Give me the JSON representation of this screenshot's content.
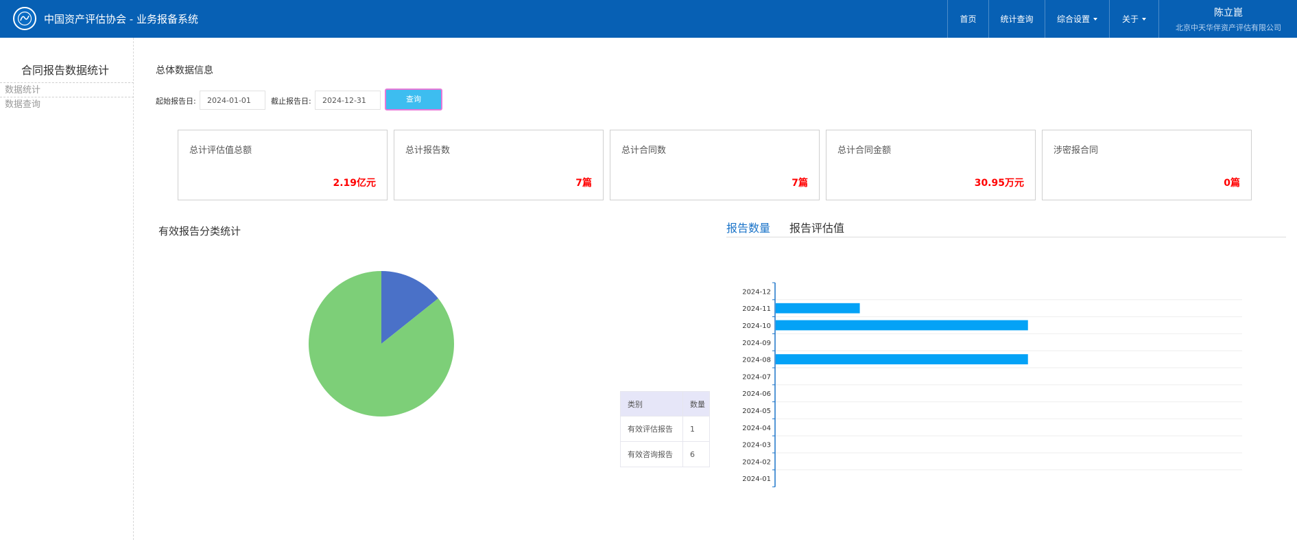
{
  "header": {
    "title": "中国资产评估协会 - 业务报备系统",
    "logo_icon": "association-logo-icon",
    "nav": [
      {
        "label": "首页",
        "dropdown": false
      },
      {
        "label": "统计查询",
        "dropdown": false
      },
      {
        "label": "综合设置",
        "dropdown": true
      },
      {
        "label": "关于",
        "dropdown": true
      }
    ],
    "user": {
      "name": "陈立崑",
      "org": "北京中天华伴资产评估有限公司"
    },
    "bg_color": "#0760b4"
  },
  "sidebar": {
    "title": "合同报告数据统计",
    "items": [
      {
        "label": "数据统计"
      },
      {
        "label": "数据查询"
      }
    ]
  },
  "summary": {
    "title": "总体数据信息",
    "filters": {
      "start_label": "起始报告日:",
      "start_value": "2024-01-01",
      "end_label": "截止报告日:",
      "end_value": "2024-12-31",
      "query_label": "查询"
    },
    "cards": [
      {
        "label": "总计评估值总额",
        "value": "2.19亿元"
      },
      {
        "label": "总计报告数",
        "value": "7篇"
      },
      {
        "label": "总计合同数",
        "value": "7篇"
      },
      {
        "label": "总计合同金额",
        "value": "30.95万元"
      },
      {
        "label": "涉密报合同",
        "value": "0篇"
      }
    ]
  },
  "pie": {
    "title": "有效报告分类统计",
    "table": {
      "headers": [
        "类别",
        "数量"
      ],
      "rows": [
        {
          "name": "有效评估报告",
          "value": "1"
        },
        {
          "name": "有效咨询报告",
          "value": "6"
        }
      ]
    }
  },
  "bar": {
    "tabs": [
      {
        "label": "报告数量",
        "active": true
      },
      {
        "label": "报告评估值",
        "active": false
      }
    ]
  },
  "chart_data": [
    {
      "type": "pie",
      "title": "",
      "slices": [
        {
          "label": "有效评估报告",
          "value": 1,
          "color": "#4a71c8"
        },
        {
          "label": "有效咨询报告",
          "value": 6,
          "color": "#7dcf78"
        }
      ]
    },
    {
      "type": "bar",
      "orientation": "horizontal",
      "categories": [
        "2024-01",
        "2024-02",
        "2024-03",
        "2024-04",
        "2024-05",
        "2024-06",
        "2024-07",
        "2024-08",
        "2024-09",
        "2024-10",
        "2024-11",
        "2024-12"
      ],
      "values": [
        0,
        0,
        0,
        0,
        0,
        0,
        0,
        3,
        0,
        3,
        1,
        0
      ],
      "xlim": [
        0,
        5
      ],
      "bar_color": "#04a2f6",
      "axis_color": "#1a73c8",
      "grid": true
    }
  ]
}
